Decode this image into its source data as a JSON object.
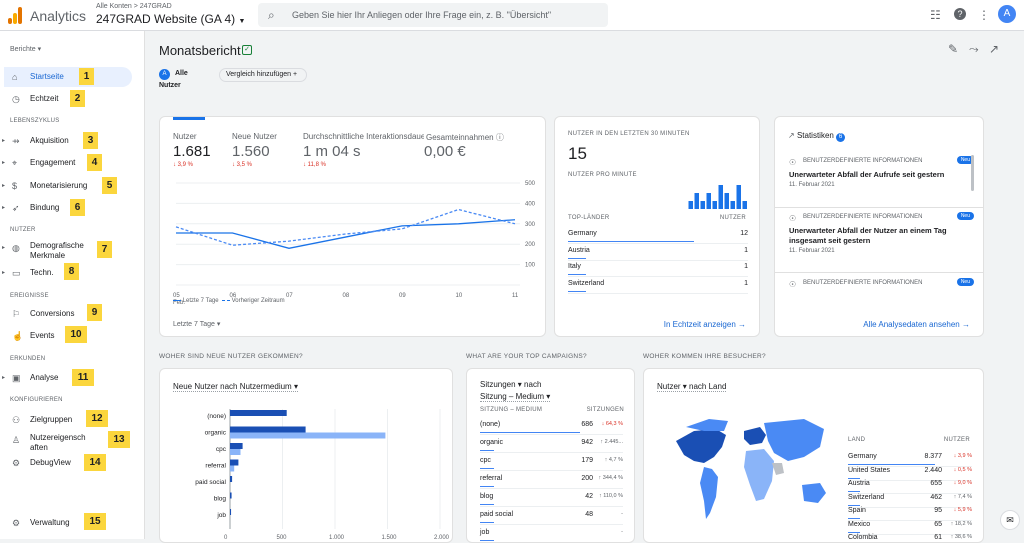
{
  "app": {
    "name": "Analytics",
    "breadcrumb": "Alle Konten > 247GRAD",
    "property": "247GRAD Website (GA 4)",
    "search_placeholder": "Geben Sie hier Ihr Anliegen oder Ihre Frage ein, z. B. \"Übersicht\"",
    "avatar": "A"
  },
  "sidebar": {
    "reports_label": "Berichte",
    "sections": {
      "lifecycle": "LEBENSZYKLUS",
      "users": "NUTZER",
      "events": "EREIGNISSE",
      "explore": "ERKUNDEN",
      "configure": "KONFIGURIEREN"
    },
    "items": [
      {
        "label": "Startseite",
        "icon": "home-icon",
        "badge": "1"
      },
      {
        "label": "Echtzeit",
        "icon": "clock-icon",
        "badge": "2"
      },
      {
        "label": "Akquisition",
        "icon": "acquisition-icon",
        "badge": "3"
      },
      {
        "label": "Engagement",
        "icon": "engagement-icon",
        "badge": "4"
      },
      {
        "label": "Monetarisierung",
        "icon": "dollar-icon",
        "badge": "5"
      },
      {
        "label": "Bindung",
        "icon": "retention-icon",
        "badge": "6"
      },
      {
        "label": "Demografische Merkmale",
        "icon": "globe-icon",
        "badge": "7"
      },
      {
        "label": "Techn.",
        "icon": "device-icon",
        "badge": "8"
      },
      {
        "label": "Conversions",
        "icon": "flag-icon",
        "badge": "9"
      },
      {
        "label": "Events",
        "icon": "touch-icon",
        "badge": "10"
      },
      {
        "label": "Analyse",
        "icon": "explore-icon",
        "badge": "11"
      },
      {
        "label": "Zielgruppen",
        "icon": "audience-icon",
        "badge": "12"
      },
      {
        "label": "Nutzereigenschaften",
        "icon": "user-props-icon",
        "badge": "13"
      },
      {
        "label": "DebugView",
        "icon": "debug-icon",
        "badge": "14"
      },
      {
        "label": "Verwaltung",
        "icon": "gear-icon",
        "badge": "15"
      }
    ]
  },
  "main": {
    "title": "Monatsbericht",
    "chip_all": "Alle Nutzer",
    "chip_all_icon": "A",
    "chip_compare": "Vergleich hinzufügen",
    "metrics": [
      {
        "label": "Nutzer",
        "value": "1.681",
        "delta": "↓ 3,9 %"
      },
      {
        "label": "Neue Nutzer",
        "value": "1.560",
        "delta": "↓ 3,5 %"
      },
      {
        "label": "Durchschnittliche Interaktionsdauer",
        "value": "1 m 04 s",
        "delta": "↓ 11,8 %"
      },
      {
        "label": "Gesamteinnahmen",
        "value": "0,00 €",
        "delta": ""
      }
    ],
    "legend_current": "Letzte 7 Tage",
    "legend_previous": "Vorheriger Zeitraum",
    "date_range": "Letzte 7 Tage",
    "realtime": {
      "title": "NUTZER IN DEN LETZTEN 30 MINUTEN",
      "value": "15",
      "per_minute": "NUTZER PRO MINUTE",
      "col_country": "TOP-LÄNDER",
      "col_users": "NUTZER",
      "rows": [
        [
          "Germany",
          "12"
        ],
        [
          "Austria",
          "1"
        ],
        [
          "Italy",
          "1"
        ],
        [
          "Switzerland",
          "1"
        ]
      ],
      "link": "In Echtzeit anzeigen"
    },
    "insights": {
      "title": "Statistiken",
      "count": "6",
      "link": "Alle Analysedaten ansehen",
      "new": "Neu",
      "items": [
        {
          "cat": "BENUTZERDEFINIERTE INFORMATIONEN",
          "title": "Unerwarteter Abfall der Aufrufe seit gestern",
          "date": "11. Februar 2021"
        },
        {
          "cat": "BENUTZERDEFINIERTE INFORMATIONEN",
          "title": "Unerwarteter Abfall der Nutzer an einem Tag insgesamt seit gestern",
          "date": "11. Februar 2021"
        },
        {
          "cat": "BENUTZERDEFINIERTE INFORMATIONEN",
          "title": "",
          "date": ""
        }
      ]
    },
    "q1": "WOHER SIND NEUE NUTZER GEKOMMEN?",
    "q2": "WHAT ARE YOUR TOP CAMPAIGNS?",
    "q3": "WOHER KOMMEN IHRE BESUCHER?",
    "new_users_dropdown": "Neue Nutzer nach Nutzermedium",
    "campaign_dd1": "Sitzungen ▾ nach",
    "campaign_dd2": "Sitzung – Medium ▾",
    "campaign_col1": "SITZUNG – MEDIUM",
    "campaign_col2": "SITZUNGEN",
    "campaign_rows": [
      [
        "(none)",
        "686",
        "↓ 64,3 %"
      ],
      [
        "organic",
        "942",
        "↑ 2.445..."
      ],
      [
        "cpc",
        "179",
        "↑ 4,7 %"
      ],
      [
        "referral",
        "200",
        "↑ 344,4 %"
      ],
      [
        "blog",
        "42",
        "↑ 110,0 %"
      ],
      [
        "paid social",
        "48",
        "-"
      ],
      [
        "job",
        "",
        "-"
      ]
    ],
    "visitors_dd": "Nutzer ▾ nach Land",
    "country_col1": "LAND",
    "country_col2": "NUTZER",
    "country_rows": [
      [
        "Germany",
        "8.377",
        "↓ 3,9 %"
      ],
      [
        "United States",
        "2.440",
        "↓ 0,5 %"
      ],
      [
        "Austria",
        "655",
        "↓ 9,0 %"
      ],
      [
        "Switzerland",
        "462",
        "↑ 7,4 %"
      ],
      [
        "Spain",
        "95",
        "↓ 5,9 %"
      ],
      [
        "Mexico",
        "65",
        "↑ 18,2 %"
      ],
      [
        "Colombia",
        "61",
        "↑ 38,6 %"
      ]
    ]
  },
  "colors": {
    "accent": "#1a73e8",
    "dark": "#1a4fb4",
    "light": "#8ab4f8",
    "badge": "#fbd63d",
    "negative": "#d93025"
  },
  "chart_data": [
    {
      "type": "line",
      "x": [
        "05 Feb.",
        "06",
        "07",
        "08",
        "09",
        "10",
        "11"
      ],
      "series": [
        {
          "name": "Letzte 7 Tage",
          "values": [
            255,
            255,
            180,
            235,
            290,
            300,
            320
          ]
        },
        {
          "name": "Vorheriger Zeitraum",
          "values": [
            285,
            195,
            215,
            250,
            275,
            370,
            300
          ]
        }
      ],
      "yticks": [
        0,
        100,
        200,
        300,
        400,
        500
      ],
      "ylim": [
        0,
        500
      ]
    },
    {
      "type": "bar",
      "orientation": "horizontal",
      "categories": [
        "(none)",
        "organic",
        "cpc",
        "referral",
        "paid social",
        "blog",
        "job"
      ],
      "series": [
        {
          "values": [
            540,
            720,
            120,
            80,
            20,
            15,
            10
          ]
        },
        {
          "values": [
            0,
            1480,
            100,
            40,
            0,
            0,
            0
          ]
        }
      ],
      "xticks": [
        "0",
        "500",
        "1.000",
        "1.500",
        "2.000"
      ],
      "xlim": [
        0,
        2000
      ]
    },
    {
      "type": "bar",
      "title": "NUTZER PRO MINUTE",
      "values": [
        0,
        0,
        0,
        0,
        0,
        0,
        0,
        0,
        0,
        0,
        0,
        0,
        0,
        0,
        0,
        0,
        0,
        0,
        0,
        0,
        1,
        2,
        1,
        2,
        1,
        3,
        2,
        1,
        3,
        1
      ]
    }
  ]
}
